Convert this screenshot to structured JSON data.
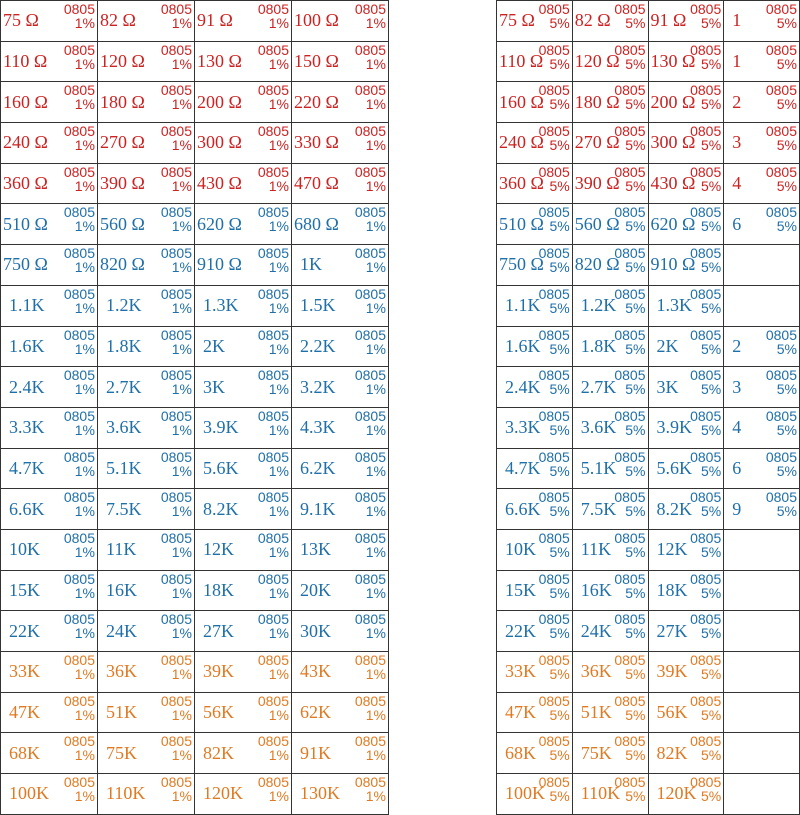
{
  "colors": {
    "red": "#cc2222",
    "blue": "#1f6fa8",
    "orange": "#e07a22"
  },
  "package": "0805",
  "tables": [
    {
      "tolerance": "1%",
      "rows": [
        {
          "color": "red",
          "values": [
            "75 Ω",
            "82 Ω",
            "91 Ω",
            "100 Ω"
          ]
        },
        {
          "color": "red",
          "values": [
            "110 Ω",
            "120 Ω",
            "130 Ω",
            "150 Ω"
          ]
        },
        {
          "color": "red",
          "values": [
            "160 Ω",
            "180 Ω",
            "200 Ω",
            "220 Ω"
          ]
        },
        {
          "color": "red",
          "values": [
            "240 Ω",
            "270 Ω",
            "300 Ω",
            "330 Ω"
          ]
        },
        {
          "color": "red",
          "values": [
            "360 Ω",
            "390 Ω",
            "430 Ω",
            "470 Ω"
          ]
        },
        {
          "color": "blue",
          "values": [
            "510 Ω",
            "560 Ω",
            "620 Ω",
            "680 Ω"
          ]
        },
        {
          "color": "blue",
          "values": [
            "750 Ω",
            "820 Ω",
            "910 Ω",
            "1K"
          ]
        },
        {
          "color": "blue",
          "values": [
            "1.1K",
            "1.2K",
            "1.3K",
            "1.5K"
          ]
        },
        {
          "color": "blue",
          "values": [
            "1.6K",
            "1.8K",
            "2K",
            "2.2K"
          ]
        },
        {
          "color": "blue",
          "values": [
            "2.4K",
            "2.7K",
            "3K",
            "3.2K"
          ]
        },
        {
          "color": "blue",
          "values": [
            "3.3K",
            "3.6K",
            "3.9K",
            "4.3K"
          ]
        },
        {
          "color": "blue",
          "values": [
            "4.7K",
            "5.1K",
            "5.6K",
            "6.2K"
          ]
        },
        {
          "color": "blue",
          "values": [
            "6.6K",
            "7.5K",
            "8.2K",
            "9.1K"
          ]
        },
        {
          "color": "blue",
          "values": [
            "10K",
            "11K",
            "12K",
            "13K"
          ]
        },
        {
          "color": "blue",
          "values": [
            "15K",
            "16K",
            "18K",
            "20K"
          ]
        },
        {
          "color": "blue",
          "values": [
            "22K",
            "24K",
            "27K",
            "30K"
          ]
        },
        {
          "color": "orange",
          "values": [
            "33K",
            "36K",
            "39K",
            "43K"
          ]
        },
        {
          "color": "orange",
          "values": [
            "47K",
            "51K",
            "56K",
            "62K"
          ]
        },
        {
          "color": "orange",
          "values": [
            "68K",
            "75K",
            "82K",
            "91K"
          ]
        },
        {
          "color": "orange",
          "values": [
            "100K",
            "110K",
            "120K",
            "130K"
          ]
        }
      ]
    },
    {
      "tolerance": "5%",
      "rows": [
        {
          "color": "red",
          "values": [
            "75 Ω",
            "82 Ω",
            "91 Ω",
            "1"
          ]
        },
        {
          "color": "red",
          "values": [
            "110 Ω",
            "120 Ω",
            "130 Ω",
            "1"
          ]
        },
        {
          "color": "red",
          "values": [
            "160 Ω",
            "180 Ω",
            "200 Ω",
            "2"
          ]
        },
        {
          "color": "red",
          "values": [
            "240 Ω",
            "270 Ω",
            "300 Ω",
            "3"
          ]
        },
        {
          "color": "red",
          "values": [
            "360 Ω",
            "390 Ω",
            "430 Ω",
            "4"
          ]
        },
        {
          "color": "blue",
          "values": [
            "510 Ω",
            "560 Ω",
            "620 Ω",
            "6"
          ]
        },
        {
          "color": "blue",
          "values": [
            "750 Ω",
            "820 Ω",
            "910 Ω",
            ""
          ]
        },
        {
          "color": "blue",
          "values": [
            "1.1K",
            "1.2K",
            "1.3K",
            ""
          ]
        },
        {
          "color": "blue",
          "values": [
            "1.6K",
            "1.8K",
            "2K",
            "2"
          ]
        },
        {
          "color": "blue",
          "values": [
            "2.4K",
            "2.7K",
            "3K",
            "3"
          ]
        },
        {
          "color": "blue",
          "values": [
            "3.3K",
            "3.6K",
            "3.9K",
            "4"
          ]
        },
        {
          "color": "blue",
          "values": [
            "4.7K",
            "5.1K",
            "5.6K",
            "6"
          ]
        },
        {
          "color": "blue",
          "values": [
            "6.6K",
            "7.5K",
            "8.2K",
            "9"
          ]
        },
        {
          "color": "blue",
          "values": [
            "10K",
            "11K",
            "12K",
            ""
          ]
        },
        {
          "color": "blue",
          "values": [
            "15K",
            "16K",
            "18K",
            ""
          ]
        },
        {
          "color": "blue",
          "values": [
            "22K",
            "24K",
            "27K",
            ""
          ]
        },
        {
          "color": "orange",
          "values": [
            "33K",
            "36K",
            "39K",
            ""
          ]
        },
        {
          "color": "orange",
          "values": [
            "47K",
            "51K",
            "56K",
            ""
          ]
        },
        {
          "color": "orange",
          "values": [
            "68K",
            "75K",
            "82K",
            ""
          ]
        },
        {
          "color": "orange",
          "values": [
            "100K",
            "110K",
            "120K",
            ""
          ]
        }
      ]
    }
  ]
}
